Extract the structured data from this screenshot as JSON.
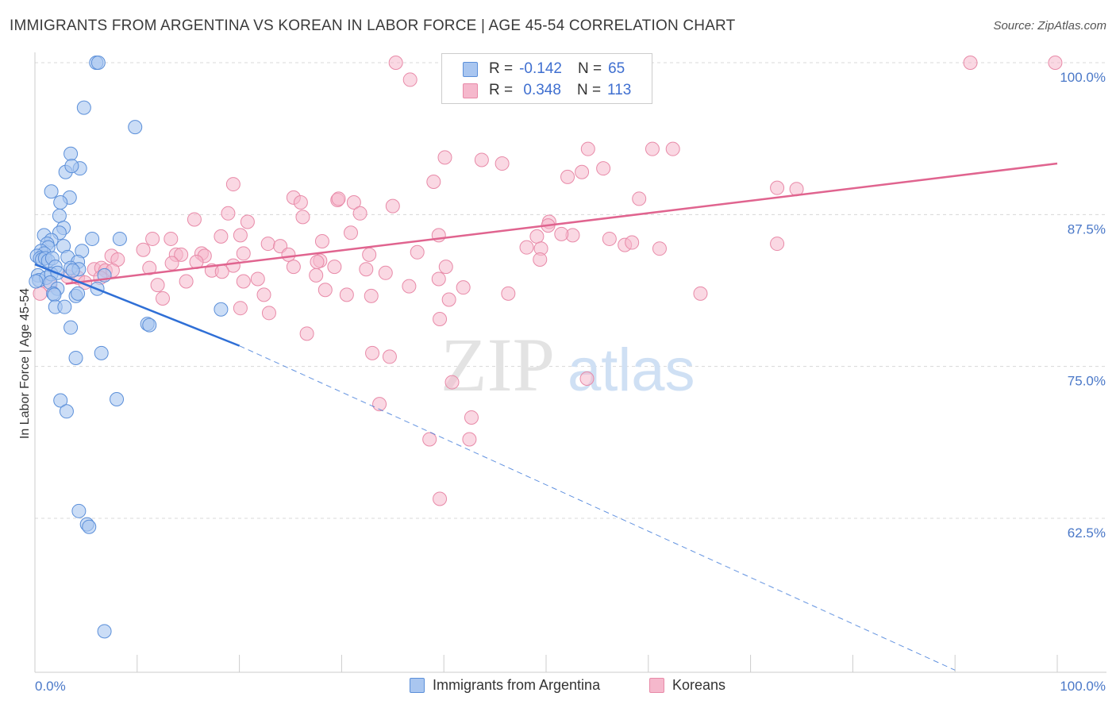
{
  "title": "IMMIGRANTS FROM ARGENTINA VS KOREAN IN LABOR FORCE | AGE 45-54 CORRELATION CHART",
  "source": "Source: ZipAtlas.com",
  "watermark": {
    "zip": "ZIP",
    "atlas": "atlas"
  },
  "colors": {
    "blue_fill": "#a9c6f0",
    "blue_stroke": "#5b8fd9",
    "blue_line": "#2f6fd6",
    "pink_fill": "#f5b8cc",
    "pink_stroke": "#e88aa8",
    "pink_line": "#e0648f",
    "grid": "#d8d8d8",
    "tick_text": "#4a78c8"
  },
  "legend_top": {
    "rows": [
      {
        "r_label": "R = ",
        "r_value": "-0.142",
        "n_label": "N = ",
        "n_value": "65"
      },
      {
        "r_label": "R = ",
        "r_value": " 0.348",
        "n_label": "N = ",
        "n_value": "113"
      }
    ]
  },
  "legend_bottom": {
    "items": [
      {
        "label": "Immigrants from Argentina"
      },
      {
        "label": "Koreans"
      }
    ]
  },
  "chart_data": {
    "type": "scatter",
    "xlabel": "",
    "ylabel": "In Labor Force | Age 45-54",
    "xlim": [
      0,
      100
    ],
    "ylim": [
      50,
      101.5
    ],
    "x_tick_labels": [
      "0.0%",
      "100.0%"
    ],
    "y_ticks": [
      62.5,
      75.0,
      87.5,
      100.0
    ],
    "y_tick_labels": [
      "62.5%",
      "75.0%",
      "87.5%",
      "100.0%"
    ],
    "grid": true,
    "legend": "top-center",
    "series": [
      {
        "name": "Immigrants from Argentina",
        "color": "#5b8fd9",
        "r": -0.142,
        "n": 65,
        "trend_solid": {
          "x": [
            0,
            20
          ],
          "y": [
            83.4,
            76.7
          ]
        },
        "trend_dashed": {
          "x": [
            20,
            90
          ],
          "y": [
            76.7,
            50.0
          ]
        },
        "points": [
          [
            6.0,
            100.0
          ],
          [
            6.2,
            100.0
          ],
          [
            4.8,
            96.3
          ],
          [
            9.8,
            94.7
          ],
          [
            3.5,
            92.5
          ],
          [
            3.0,
            91.0
          ],
          [
            4.4,
            91.3
          ],
          [
            3.6,
            91.5
          ],
          [
            1.6,
            89.4
          ],
          [
            3.4,
            88.9
          ],
          [
            2.5,
            88.5
          ],
          [
            2.4,
            87.4
          ],
          [
            2.8,
            86.4
          ],
          [
            0.9,
            85.8
          ],
          [
            2.4,
            86.0
          ],
          [
            5.6,
            85.5
          ],
          [
            8.3,
            85.5
          ],
          [
            1.6,
            85.4
          ],
          [
            1.2,
            85.1
          ],
          [
            1.3,
            84.8
          ],
          [
            2.8,
            84.9
          ],
          [
            4.6,
            84.5
          ],
          [
            0.6,
            84.5
          ],
          [
            0.9,
            84.3
          ],
          [
            0.2,
            84.1
          ],
          [
            0.5,
            83.9
          ],
          [
            0.7,
            83.8
          ],
          [
            1.0,
            83.9
          ],
          [
            1.3,
            83.7
          ],
          [
            1.7,
            83.9
          ],
          [
            3.2,
            84.0
          ],
          [
            4.2,
            83.6
          ],
          [
            2.0,
            83.2
          ],
          [
            3.5,
            83.1
          ],
          [
            4.3,
            83.0
          ],
          [
            0.3,
            82.5
          ],
          [
            0.4,
            82.1
          ],
          [
            1.1,
            82.3
          ],
          [
            1.6,
            82.6
          ],
          [
            2.2,
            82.7
          ],
          [
            3.7,
            82.9
          ],
          [
            1.5,
            81.9
          ],
          [
            6.8,
            82.5
          ],
          [
            2.2,
            81.4
          ],
          [
            6.1,
            81.4
          ],
          [
            1.8,
            81.0
          ],
          [
            1.9,
            80.9
          ],
          [
            4.0,
            80.8
          ],
          [
            4.2,
            81.0
          ],
          [
            2.0,
            79.9
          ],
          [
            2.9,
            79.9
          ],
          [
            18.2,
            79.7
          ],
          [
            11.0,
            78.5
          ],
          [
            11.2,
            78.4
          ],
          [
            3.5,
            78.2
          ],
          [
            6.5,
            76.1
          ],
          [
            4.0,
            75.7
          ],
          [
            8.0,
            72.3
          ],
          [
            2.5,
            72.2
          ],
          [
            3.1,
            71.3
          ],
          [
            4.3,
            63.1
          ],
          [
            5.1,
            62.0
          ],
          [
            5.3,
            61.8
          ],
          [
            6.8,
            53.2
          ],
          [
            0.1,
            82.0
          ]
        ]
      },
      {
        "name": "Koreans",
        "color": "#e88aa8",
        "r": 0.348,
        "n": 113,
        "trend": {
          "x": [
            3,
            100
          ],
          "y": [
            81.8,
            91.7
          ]
        },
        "points": [
          [
            35.3,
            100.0
          ],
          [
            40.6,
            100.0
          ],
          [
            91.5,
            100.0
          ],
          [
            99.8,
            100.0
          ],
          [
            36.7,
            98.6
          ],
          [
            54.1,
            92.9
          ],
          [
            60.4,
            92.9
          ],
          [
            62.4,
            92.9
          ],
          [
            40.1,
            92.2
          ],
          [
            43.7,
            92.0
          ],
          [
            45.7,
            91.7
          ],
          [
            55.6,
            91.3
          ],
          [
            53.5,
            91.0
          ],
          [
            52.1,
            90.6
          ],
          [
            39.0,
            90.2
          ],
          [
            72.6,
            89.7
          ],
          [
            74.5,
            89.6
          ],
          [
            19.4,
            90.0
          ],
          [
            25.3,
            88.9
          ],
          [
            29.6,
            88.7
          ],
          [
            29.7,
            88.8
          ],
          [
            31.2,
            88.5
          ],
          [
            35.0,
            88.2
          ],
          [
            59.1,
            88.8
          ],
          [
            26.0,
            88.5
          ],
          [
            18.9,
            87.6
          ],
          [
            31.8,
            87.6
          ],
          [
            26.2,
            87.3
          ],
          [
            15.6,
            87.1
          ],
          [
            20.8,
            86.9
          ],
          [
            50.3,
            86.9
          ],
          [
            50.2,
            86.6
          ],
          [
            30.9,
            86.0
          ],
          [
            18.2,
            85.7
          ],
          [
            20.1,
            85.8
          ],
          [
            39.5,
            85.8
          ],
          [
            49.1,
            85.7
          ],
          [
            52.6,
            85.8
          ],
          [
            51.5,
            85.9
          ],
          [
            56.2,
            85.5
          ],
          [
            11.5,
            85.5
          ],
          [
            13.3,
            85.5
          ],
          [
            28.1,
            85.3
          ],
          [
            22.8,
            85.1
          ],
          [
            24.0,
            84.9
          ],
          [
            57.7,
            85.0
          ],
          [
            58.4,
            85.2
          ],
          [
            72.6,
            85.1
          ],
          [
            48.1,
            84.8
          ],
          [
            49.5,
            84.7
          ],
          [
            10.6,
            84.6
          ],
          [
            61.1,
            84.7
          ],
          [
            20.4,
            84.3
          ],
          [
            24.8,
            84.2
          ],
          [
            32.7,
            84.2
          ],
          [
            37.4,
            84.4
          ],
          [
            13.8,
            84.2
          ],
          [
            14.3,
            84.2
          ],
          [
            16.3,
            84.3
          ],
          [
            16.6,
            84.1
          ],
          [
            7.5,
            84.1
          ],
          [
            8.1,
            83.8
          ],
          [
            27.9,
            83.7
          ],
          [
            49.4,
            83.8
          ],
          [
            15.8,
            83.6
          ],
          [
            27.6,
            83.6
          ],
          [
            11.2,
            83.1
          ],
          [
            13.4,
            83.5
          ],
          [
            19.4,
            83.3
          ],
          [
            25.3,
            83.2
          ],
          [
            29.3,
            83.2
          ],
          [
            32.4,
            83.0
          ],
          [
            40.2,
            83.2
          ],
          [
            5.8,
            83.0
          ],
          [
            6.5,
            83.1
          ],
          [
            6.9,
            82.9
          ],
          [
            7.6,
            82.9
          ],
          [
            17.3,
            82.9
          ],
          [
            18.3,
            82.8
          ],
          [
            27.5,
            82.5
          ],
          [
            34.3,
            82.7
          ],
          [
            21.8,
            82.2
          ],
          [
            20.4,
            82.0
          ],
          [
            3.2,
            82.4
          ],
          [
            4.2,
            82.3
          ],
          [
            6.4,
            82.3
          ],
          [
            14.8,
            82.0
          ],
          [
            4.9,
            81.9
          ],
          [
            39.5,
            82.2
          ],
          [
            1.5,
            81.7
          ],
          [
            12.0,
            81.7
          ],
          [
            36.6,
            81.6
          ],
          [
            41.9,
            81.5
          ],
          [
            46.3,
            81.0
          ],
          [
            65.1,
            81.0
          ],
          [
            22.4,
            80.9
          ],
          [
            30.5,
            80.9
          ],
          [
            28.4,
            81.3
          ],
          [
            32.9,
            80.8
          ],
          [
            40.5,
            80.5
          ],
          [
            12.5,
            80.6
          ],
          [
            22.9,
            79.4
          ],
          [
            20.1,
            79.8
          ],
          [
            39.6,
            78.9
          ],
          [
            26.6,
            77.7
          ],
          [
            33.0,
            76.1
          ],
          [
            34.7,
            75.8
          ],
          [
            54.0,
            74.0
          ],
          [
            40.8,
            73.7
          ],
          [
            33.7,
            71.9
          ],
          [
            42.7,
            70.8
          ],
          [
            38.6,
            69.0
          ],
          [
            42.5,
            69.0
          ],
          [
            39.6,
            64.1
          ],
          [
            0.5,
            81.0
          ]
        ]
      }
    ]
  }
}
